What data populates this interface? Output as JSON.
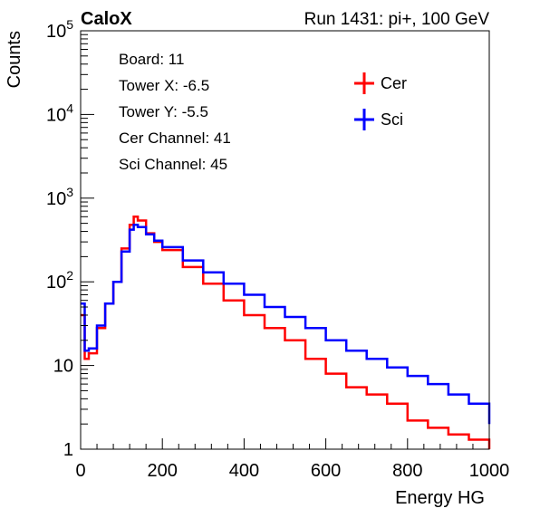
{
  "header": {
    "left_label": "CaloX",
    "right_label": "Run 1431: pi+, 100 GeV"
  },
  "info_box": {
    "lines": [
      "Board: 11",
      "Tower X: -6.5",
      "Tower Y: -5.5",
      "Cer Channel: 41",
      "Sci Channel: 45"
    ]
  },
  "colors": {
    "cer": "#ff0000",
    "sci": "#0000ff",
    "axis": "#000000",
    "background": "#ffffff"
  },
  "chart_data": {
    "type": "line",
    "histogram": true,
    "xlabel": "Energy HG",
    "ylabel": "Counts",
    "xlim": [
      0,
      1000
    ],
    "ylim": [
      1,
      100000
    ],
    "y_scale": "log",
    "grid": false,
    "legend_position": "top-right",
    "x_ticks": [
      0,
      200,
      400,
      600,
      800,
      1000
    ],
    "x_tick_labels": [
      "0",
      "200",
      "400",
      "600",
      "800",
      "1000"
    ],
    "y_ticks": [
      1,
      10,
      100,
      1000,
      10000,
      100000
    ],
    "y_tick_labels": [
      "1",
      "10",
      "10^2",
      "10^3",
      "10^4",
      "10^5"
    ],
    "series": [
      {
        "name": "Cer",
        "color": "#ff0000",
        "x": [
          0,
          10,
          20,
          40,
          60,
          80,
          100,
          120,
          130,
          140,
          160,
          180,
          200,
          250,
          300,
          350,
          400,
          450,
          500,
          550,
          600,
          650,
          700,
          750,
          800,
          850,
          900,
          950,
          1000
        ],
        "y": [
          40,
          12,
          14,
          28,
          55,
          100,
          250,
          480,
          600,
          540,
          380,
          300,
          240,
          150,
          95,
          60,
          40,
          28,
          20,
          12,
          8,
          5.5,
          4.5,
          3.5,
          2.2,
          1.8,
          1.5,
          1.3,
          1
        ]
      },
      {
        "name": "Sci",
        "color": "#0000ff",
        "x": [
          0,
          10,
          20,
          40,
          60,
          80,
          100,
          120,
          130,
          140,
          160,
          180,
          200,
          250,
          300,
          350,
          400,
          450,
          500,
          550,
          600,
          650,
          700,
          750,
          800,
          850,
          900,
          950,
          1000
        ],
        "y": [
          55,
          15,
          16,
          30,
          55,
          100,
          230,
          420,
          480,
          450,
          370,
          310,
          260,
          180,
          130,
          95,
          70,
          50,
          38,
          28,
          20,
          15,
          12,
          9.5,
          7.5,
          6,
          4.5,
          3.5,
          2
        ]
      }
    ]
  }
}
